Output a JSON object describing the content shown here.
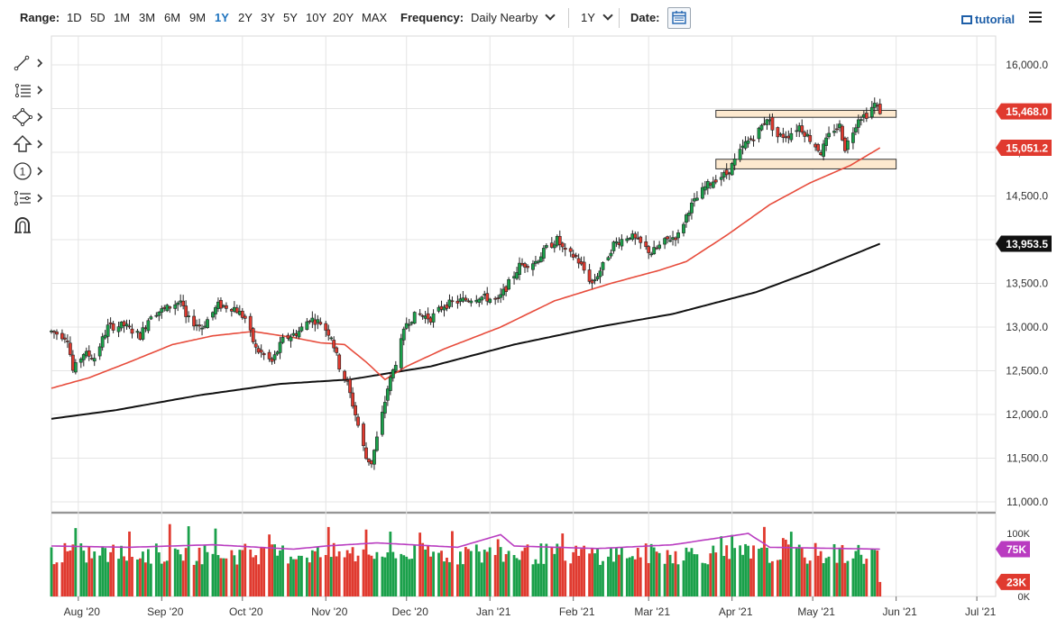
{
  "toolbar": {
    "range_label": "Range:",
    "ranges": [
      "1D",
      "5D",
      "1M",
      "3M",
      "6M",
      "9M",
      "1Y",
      "2Y",
      "3Y",
      "5Y",
      "10Y",
      "20Y",
      "MAX"
    ],
    "active_range": "1Y",
    "frequency_label": "Frequency:",
    "frequency_value": "Daily Nearby",
    "period_value": "1Y",
    "date_label": "Date:",
    "tutorial_label": "tutorial",
    "icons": [
      "calendar-icon",
      "film-icon",
      "hamburger-menu-icon",
      "chevron-down-icon"
    ]
  },
  "drawing_tools": [
    "line-tool-icon",
    "fibonacci-tool-icon",
    "shape-tool-icon",
    "arrow-up-tool-icon",
    "numbered-annotation-icon",
    "pattern-tool-icon",
    "magnet-icon"
  ],
  "drawing_tool_number": "1",
  "colors": {
    "up": "#1aa04a",
    "down": "#e03a2f",
    "ma_short": "#e74c3c",
    "ma_long": "#111111",
    "volume_ma": "#b93cc0",
    "box_fill": "#fde9cf",
    "active": "#1e73be"
  },
  "chart_data": {
    "type": "candlestick",
    "title": "",
    "xlabel": "",
    "ylabel": "",
    "ylim": [
      11000,
      16000
    ],
    "y_ticks": [
      "16,000.0",
      "15,500.0",
      "15,000.0",
      "14,500.0",
      "14,000.0",
      "13,500.0",
      "13,000.0",
      "12,500.0",
      "12,000.0",
      "11,500.0",
      "11,000.0"
    ],
    "y_tick_values": [
      16000,
      15500,
      15000,
      14500,
      14000,
      13500,
      13000,
      12500,
      12000,
      11500,
      11000
    ],
    "x_ticks": [
      "Aug '20",
      "Sep '20",
      "Oct '20",
      "Nov '20",
      "Dec '20",
      "Jan '21",
      "Feb '21",
      "Mar '21",
      "Apr '21",
      "May '21",
      "Jun '21",
      "Jul '21"
    ],
    "x_tick_dates": [
      "2020-08-01",
      "2020-09-01",
      "2020-10-01",
      "2020-11-01",
      "2020-12-01",
      "2021-01-01",
      "2021-02-01",
      "2021-03-01",
      "2021-04-01",
      "2021-05-01",
      "2021-06-01",
      "2021-07-01"
    ],
    "x_range": [
      "2020-07-22",
      "2021-07-08"
    ],
    "grid": true,
    "price_labels": [
      {
        "text": "15,468.0",
        "value": 15468,
        "color": "#e03a2f"
      },
      {
        "text": "15,051.2",
        "value": 15051.2,
        "color": "#e03a2f"
      },
      {
        "text": "13,953.5",
        "value": 13953.5,
        "color": "#111111"
      }
    ],
    "close_path": [
      [
        "2020-07-22",
        12950
      ],
      [
        "2020-07-28",
        12880
      ],
      [
        "2020-07-30",
        12500
      ],
      [
        "2020-08-03",
        12700
      ],
      [
        "2020-08-07",
        12650
      ],
      [
        "2020-08-12",
        13000
      ],
      [
        "2020-08-18",
        13020
      ],
      [
        "2020-08-24",
        12900
      ],
      [
        "2020-08-28",
        13150
      ],
      [
        "2020-09-02",
        13200
      ],
      [
        "2020-09-08",
        13300
      ],
      [
        "2020-09-10",
        13100
      ],
      [
        "2020-09-16",
        13000
      ],
      [
        "2020-09-22",
        13250
      ],
      [
        "2020-09-28",
        13220
      ],
      [
        "2020-10-02",
        13100
      ],
      [
        "2020-10-06",
        12750
      ],
      [
        "2020-10-12",
        12600
      ],
      [
        "2020-10-16",
        12850
      ],
      [
        "2020-10-22",
        12950
      ],
      [
        "2020-10-26",
        13100
      ],
      [
        "2020-10-30",
        13050
      ],
      [
        "2020-11-03",
        12900
      ],
      [
        "2020-11-06",
        12550
      ],
      [
        "2020-11-09",
        12350
      ],
      [
        "2020-11-12",
        12000
      ],
      [
        "2020-11-16",
        11500
      ],
      [
        "2020-11-18",
        11450
      ],
      [
        "2020-11-22",
        12000
      ],
      [
        "2020-11-24",
        12300
      ],
      [
        "2020-11-27",
        12600
      ],
      [
        "2020-12-01",
        13050
      ],
      [
        "2020-12-05",
        13150
      ],
      [
        "2020-12-10",
        13100
      ],
      [
        "2020-12-15",
        13250
      ],
      [
        "2020-12-21",
        13300
      ],
      [
        "2020-12-28",
        13350
      ],
      [
        "2021-01-04",
        13300
      ],
      [
        "2021-01-08",
        13500
      ],
      [
        "2021-01-12",
        13700
      ],
      [
        "2021-01-18",
        13750
      ],
      [
        "2021-01-22",
        13900
      ],
      [
        "2021-01-26",
        14000
      ],
      [
        "2021-01-29",
        13850
      ],
      [
        "2021-02-02",
        13800
      ],
      [
        "2021-02-08",
        13500
      ],
      [
        "2021-02-12",
        13700
      ],
      [
        "2021-02-16",
        13950
      ],
      [
        "2021-02-22",
        14050
      ],
      [
        "2021-02-26",
        13950
      ],
      [
        "2021-03-02",
        13850
      ],
      [
        "2021-03-08",
        14000
      ],
      [
        "2021-03-12",
        14050
      ],
      [
        "2021-03-16",
        14350
      ],
      [
        "2021-03-22",
        14600
      ],
      [
        "2021-03-26",
        14700
      ],
      [
        "2021-03-30",
        14750
      ],
      [
        "2021-04-02",
        14900
      ],
      [
        "2021-04-06",
        15100
      ],
      [
        "2021-04-10",
        15200
      ],
      [
        "2021-04-14",
        15400
      ],
      [
        "2021-04-18",
        15180
      ],
      [
        "2021-04-22",
        15200
      ],
      [
        "2021-04-26",
        15300
      ],
      [
        "2021-04-30",
        15150
      ],
      [
        "2021-05-04",
        15000
      ],
      [
        "2021-05-08",
        15250
      ],
      [
        "2021-05-11",
        15300
      ],
      [
        "2021-05-13",
        15050
      ],
      [
        "2021-05-16",
        15250
      ],
      [
        "2021-05-18",
        15400
      ],
      [
        "2021-05-21",
        15430
      ],
      [
        "2021-05-24",
        15550
      ],
      [
        "2021-05-26",
        15470
      ]
    ],
    "ma_short": [
      [
        "2020-07-22",
        12300
      ],
      [
        "2020-08-05",
        12420
      ],
      [
        "2020-08-20",
        12600
      ],
      [
        "2020-09-05",
        12800
      ],
      [
        "2020-09-20",
        12900
      ],
      [
        "2020-10-05",
        12950
      ],
      [
        "2020-10-20",
        12880
      ],
      [
        "2020-10-30",
        12820
      ],
      [
        "2020-11-08",
        12800
      ],
      [
        "2020-11-16",
        12600
      ],
      [
        "2020-11-23",
        12400
      ],
      [
        "2020-12-01",
        12550
      ],
      [
        "2020-12-15",
        12750
      ],
      [
        "2021-01-05",
        13000
      ],
      [
        "2021-01-25",
        13300
      ],
      [
        "2021-02-15",
        13500
      ],
      [
        "2021-03-05",
        13650
      ],
      [
        "2021-03-15",
        13750
      ],
      [
        "2021-03-30",
        14050
      ],
      [
        "2021-04-15",
        14400
      ],
      [
        "2021-04-30",
        14650
      ],
      [
        "2021-05-15",
        14850
      ],
      [
        "2021-05-26",
        15051.2
      ]
    ],
    "ma_long": [
      [
        "2020-07-22",
        11950
      ],
      [
        "2020-08-15",
        12050
      ],
      [
        "2020-09-15",
        12220
      ],
      [
        "2020-10-15",
        12350
      ],
      [
        "2020-11-10",
        12400
      ],
      [
        "2020-12-10",
        12550
      ],
      [
        "2021-01-10",
        12800
      ],
      [
        "2021-02-10",
        13000
      ],
      [
        "2021-03-10",
        13150
      ],
      [
        "2021-04-10",
        13400
      ],
      [
        "2021-04-30",
        13630
      ],
      [
        "2021-05-26",
        13953.5
      ]
    ],
    "resistance_zone": {
      "start": "2021-03-26",
      "end": "2021-06-01",
      "low": 15400,
      "high": 15480
    },
    "support_zone": {
      "start": "2021-03-26",
      "end": "2021-06-01",
      "low": 14810,
      "high": 14920
    },
    "volume": {
      "y_ticks": [
        "100K",
        "0K"
      ],
      "y_tick_values": [
        100000,
        0
      ],
      "ylim": [
        0,
        120000
      ],
      "badges": [
        {
          "text": "75K",
          "value": 75000,
          "color": "#b93cc0"
        },
        {
          "text": "23K",
          "value": 23000,
          "color": "#e03a2f"
        }
      ],
      "average": [
        [
          "2020-07-22",
          80000
        ],
        [
          "2020-08-20",
          78000
        ],
        [
          "2020-09-20",
          82000
        ],
        [
          "2020-10-20",
          75000
        ],
        [
          "2020-11-01",
          80000
        ],
        [
          "2020-11-20",
          85000
        ],
        [
          "2020-12-20",
          78000
        ],
        [
          "2021-01-05",
          98000
        ],
        [
          "2021-01-10",
          80000
        ],
        [
          "2021-02-10",
          76000
        ],
        [
          "2021-03-10",
          82000
        ],
        [
          "2021-04-07",
          100000
        ],
        [
          "2021-04-15",
          78000
        ],
        [
          "2021-05-26",
          75000
        ]
      ]
    }
  }
}
